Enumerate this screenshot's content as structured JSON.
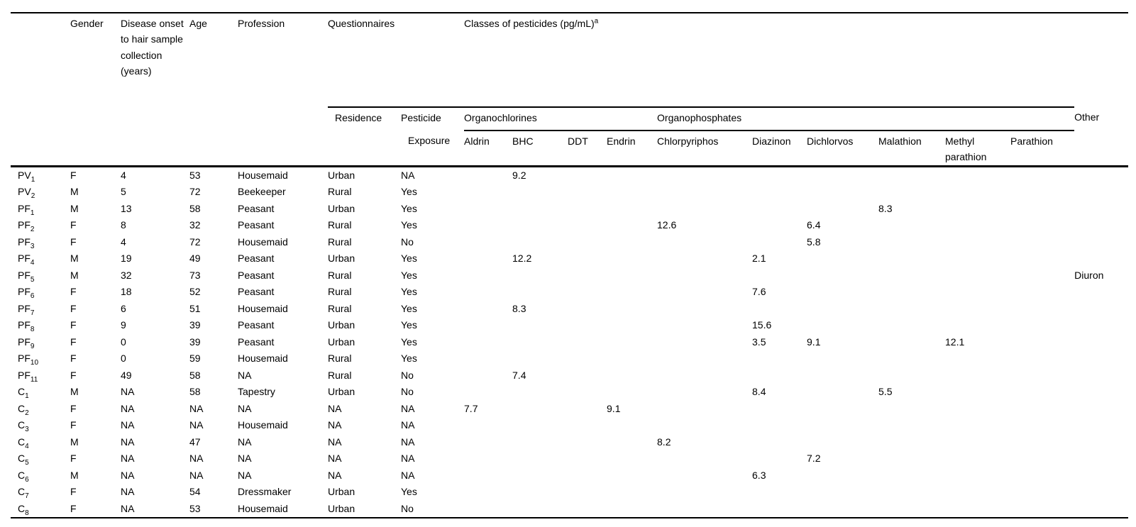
{
  "colors": {
    "background": "#ffffff",
    "text": "#000000",
    "rules": "#000000"
  },
  "table": {
    "header": {
      "col_gender": "Gender",
      "col_onset": "Disease onset to hair sample collection (years)",
      "col_age": "Age",
      "col_profession": "Profession",
      "group_questionnaires": "Questionnaires",
      "group_classes": "Classes of pesticides (pg/mL)",
      "classes_superscript": "a",
      "col_residence": "Residence",
      "col_pesticide_line1": "Pesticide",
      "col_pesticide_line2": "Exposure",
      "group_organochlorines": "Organochlorines",
      "group_organophosphates": "Organophosphates",
      "col_other": "Other",
      "organochlorine_cols": [
        "Aldrin",
        "BHC",
        "DDT",
        "Endrin"
      ],
      "organophosphate_cols": [
        "Chlorpyriphos",
        "Diazinon",
        "Dichlorvos",
        "Malathion",
        "Methyl parathion",
        "Parathion"
      ]
    },
    "column_keys": [
      "gender",
      "onset",
      "age",
      "profession",
      "residence",
      "exposure",
      "aldrin",
      "bhc",
      "ddt",
      "endrin",
      "chlorpyriphos",
      "diazinon",
      "dichlorvos",
      "malathion",
      "methyl_parathion",
      "parathion",
      "other"
    ],
    "rows": [
      {
        "base": "PV",
        "sub": "1",
        "gender": "F",
        "onset": "4",
        "age": "53",
        "profession": "Housemaid",
        "residence": "Urban",
        "exposure": "NA",
        "bhc": "9.2"
      },
      {
        "base": "PV",
        "sub": "2",
        "gender": "M",
        "onset": "5",
        "age": "72",
        "profession": "Beekeeper",
        "residence": "Rural",
        "exposure": "Yes"
      },
      {
        "base": "PF",
        "sub": "1",
        "gender": "M",
        "onset": "13",
        "age": "58",
        "profession": "Peasant",
        "residence": "Urban",
        "exposure": "Yes",
        "malathion": "8.3"
      },
      {
        "base": "PF",
        "sub": "2",
        "gender": "F",
        "onset": "8",
        "age": "32",
        "profession": "Peasant",
        "residence": "Rural",
        "exposure": "Yes",
        "chlorpyriphos": "12.6",
        "dichlorvos": "6.4"
      },
      {
        "base": "PF",
        "sub": "3",
        "gender": "F",
        "onset": "4",
        "age": "72",
        "profession": "Housemaid",
        "residence": "Rural",
        "exposure": "No",
        "dichlorvos": "5.8"
      },
      {
        "base": "PF",
        "sub": "4",
        "gender": "M",
        "onset": "19",
        "age": "49",
        "profession": "Peasant",
        "residence": "Urban",
        "exposure": "Yes",
        "bhc": "12.2",
        "diazinon": "2.1"
      },
      {
        "base": "PF",
        "sub": "5",
        "gender": "M",
        "onset": "32",
        "age": "73",
        "profession": "Peasant",
        "residence": "Rural",
        "exposure": "Yes",
        "other": "Diuron"
      },
      {
        "base": "PF",
        "sub": "6",
        "gender": "F",
        "onset": "18",
        "age": "52",
        "profession": "Peasant",
        "residence": "Rural",
        "exposure": "Yes",
        "diazinon": "7.6"
      },
      {
        "base": "PF",
        "sub": "7",
        "gender": "F",
        "onset": "6",
        "age": "51",
        "profession": "Housemaid",
        "residence": "Rural",
        "exposure": "Yes",
        "bhc": "8.3"
      },
      {
        "base": "PF",
        "sub": "8",
        "gender": "F",
        "onset": "9",
        "age": "39",
        "profession": "Peasant",
        "residence": "Urban",
        "exposure": "Yes",
        "diazinon": "15.6"
      },
      {
        "base": "PF",
        "sub": "9",
        "gender": "F",
        "onset": "0",
        "age": "39",
        "profession": "Peasant",
        "residence": "Urban",
        "exposure": "Yes",
        "diazinon": "3.5",
        "dichlorvos": "9.1",
        "methyl_parathion": "12.1"
      },
      {
        "base": "PF",
        "sub": "10",
        "gender": "F",
        "onset": "0",
        "age": "59",
        "profession": "Housemaid",
        "residence": "Rural",
        "exposure": "Yes"
      },
      {
        "base": "PF",
        "sub": "11",
        "gender": "F",
        "onset": "49",
        "age": "58",
        "profession": "NA",
        "residence": "Rural",
        "exposure": "No",
        "bhc": "7.4"
      },
      {
        "base": "C",
        "sub": "1",
        "gender": "M",
        "onset": "NA",
        "age": "58",
        "profession": "Tapestry",
        "residence": "Urban",
        "exposure": "No",
        "diazinon": "8.4",
        "malathion": "5.5"
      },
      {
        "base": "C",
        "sub": "2",
        "gender": "F",
        "onset": "NA",
        "age": "NA",
        "profession": "NA",
        "residence": "NA",
        "exposure": "NA",
        "aldrin": "7.7",
        "endrin": "9.1"
      },
      {
        "base": "C",
        "sub": "3",
        "gender": "F",
        "onset": "NA",
        "age": "NA",
        "profession": "Housemaid",
        "residence": "NA",
        "exposure": "NA"
      },
      {
        "base": "C",
        "sub": "4",
        "gender": "M",
        "onset": "NA",
        "age": "47",
        "profession": "NA",
        "residence": "NA",
        "exposure": "NA",
        "chlorpyriphos": "8.2"
      },
      {
        "base": "C",
        "sub": "5",
        "gender": "F",
        "onset": "NA",
        "age": "NA",
        "profession": "NA",
        "residence": "NA",
        "exposure": "NA",
        "dichlorvos": "7.2"
      },
      {
        "base": "C",
        "sub": "6",
        "gender": "M",
        "onset": "NA",
        "age": "NA",
        "profession": "NA",
        "residence": "NA",
        "exposure": "NA",
        "diazinon": "6.3"
      },
      {
        "base": "C",
        "sub": "7",
        "gender": "F",
        "onset": "NA",
        "age": "54",
        "profession": "Dressmaker",
        "residence": "Urban",
        "exposure": "Yes"
      },
      {
        "base": "C",
        "sub": "8",
        "gender": "F",
        "onset": "NA",
        "age": "53",
        "profession": "Housemaid",
        "residence": "Urban",
        "exposure": "No"
      }
    ]
  }
}
